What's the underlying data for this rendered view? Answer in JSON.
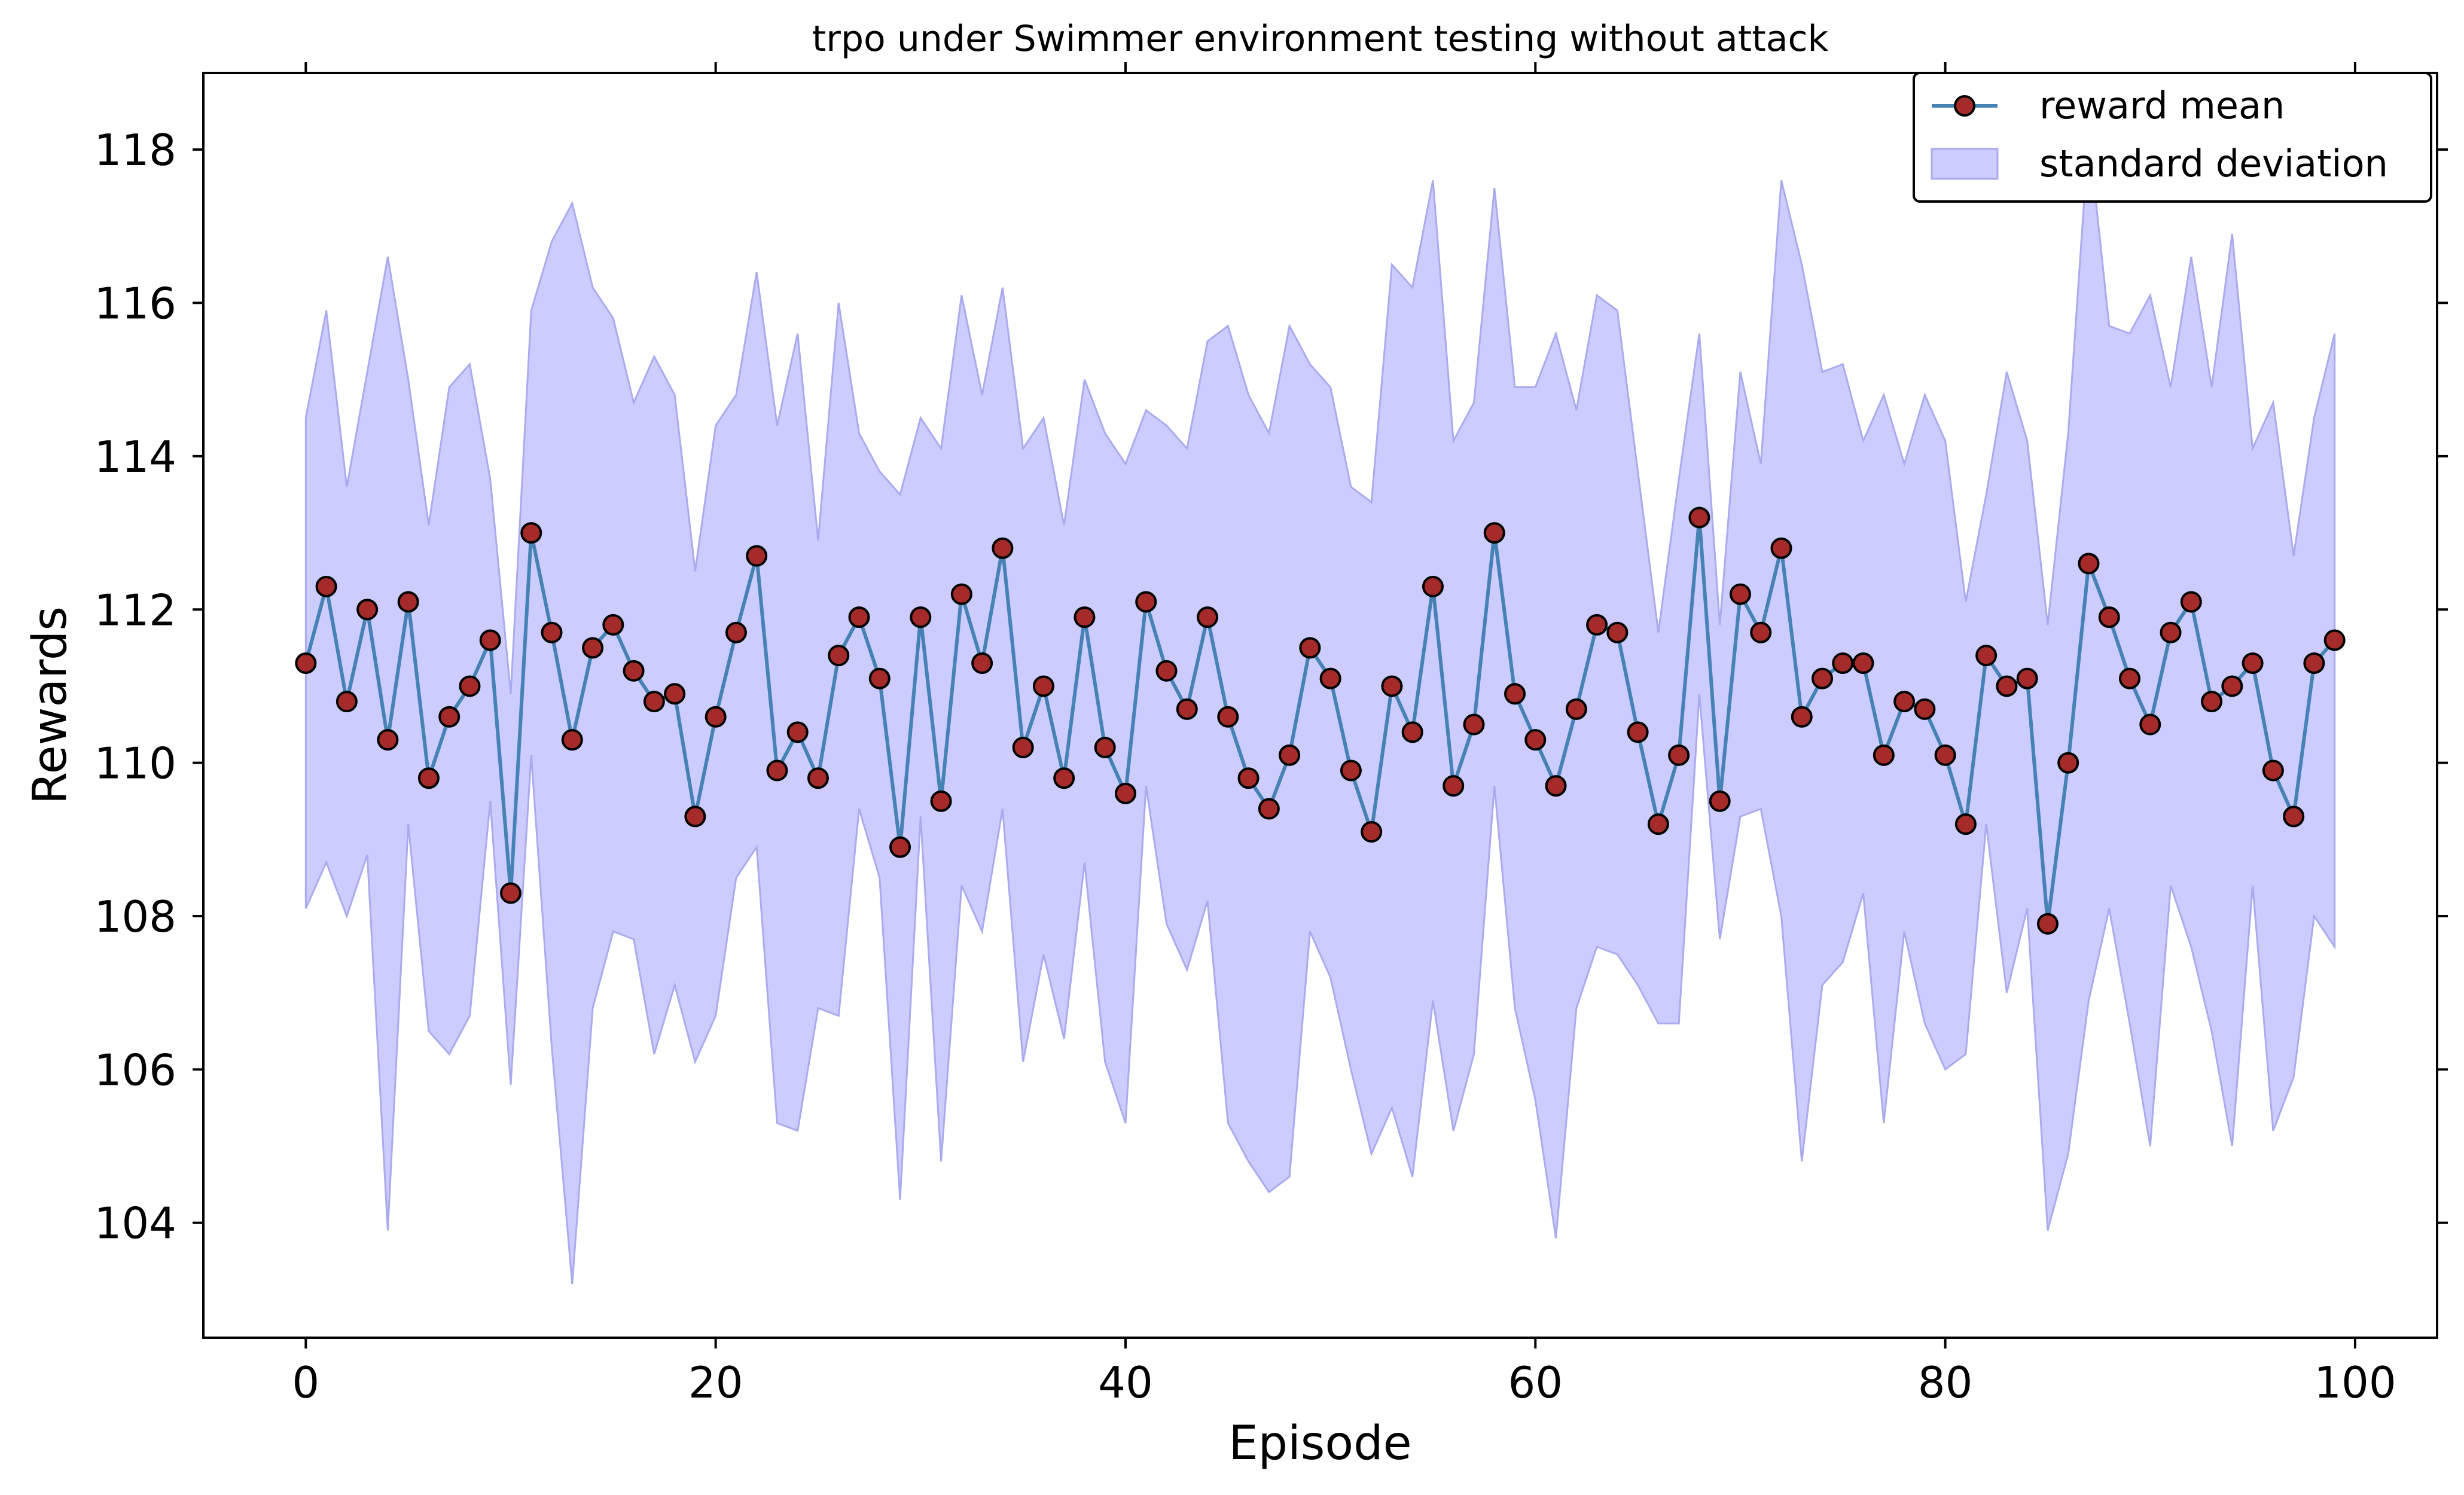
{
  "chart_data": {
    "type": "line",
    "title": "trpo under Swimmer environment testing without attack",
    "xlabel": "Episode",
    "ylabel": "Rewards",
    "xlim": [
      -5,
      104
    ],
    "ylim": [
      102.5,
      119
    ],
    "xticks": [
      0,
      20,
      40,
      60,
      80,
      100
    ],
    "yticks": [
      104,
      106,
      108,
      110,
      112,
      114,
      116,
      118
    ],
    "legend_position": "top-right",
    "colors": {
      "line": "#4682b4",
      "marker_fill": "#a52a2a",
      "marker_edge": "#000000",
      "band_fill": "#ccccff",
      "band_edge": "#aaaaee"
    },
    "x": [
      0,
      1,
      2,
      3,
      4,
      5,
      6,
      7,
      8,
      9,
      10,
      11,
      12,
      13,
      14,
      15,
      16,
      17,
      18,
      19,
      20,
      21,
      22,
      23,
      24,
      25,
      26,
      27,
      28,
      29,
      30,
      31,
      32,
      33,
      34,
      35,
      36,
      37,
      38,
      39,
      40,
      41,
      42,
      43,
      44,
      45,
      46,
      47,
      48,
      49,
      50,
      51,
      52,
      53,
      54,
      55,
      56,
      57,
      58,
      59,
      60,
      61,
      62,
      63,
      64,
      65,
      66,
      67,
      68,
      69,
      70,
      71,
      72,
      73,
      74,
      75,
      76,
      77,
      78,
      79,
      80,
      81,
      82,
      83,
      84,
      85,
      86,
      87,
      88,
      89,
      90,
      91,
      92,
      93,
      94,
      95,
      96,
      97,
      98,
      99
    ],
    "series": [
      {
        "name": "reward mean",
        "values": [
          111.3,
          112.3,
          110.8,
          112.0,
          110.3,
          112.1,
          109.8,
          110.6,
          111.0,
          111.6,
          108.3,
          113.0,
          111.7,
          110.3,
          111.5,
          111.8,
          111.2,
          110.8,
          110.9,
          109.3,
          110.6,
          111.7,
          112.7,
          109.9,
          110.4,
          109.8,
          111.4,
          111.9,
          111.1,
          108.9,
          111.9,
          109.5,
          112.2,
          111.3,
          112.8,
          110.2,
          111.0,
          109.8,
          111.9,
          110.2,
          109.6,
          112.1,
          111.2,
          110.7,
          111.9,
          110.6,
          109.8,
          109.4,
          110.1,
          111.5,
          111.1,
          109.9,
          109.1,
          111.0,
          110.4,
          112.3,
          109.7,
          110.5,
          113.0,
          110.9,
          110.3,
          109.7,
          110.7,
          111.8,
          111.7,
          110.4,
          109.2,
          110.1,
          113.2,
          109.5,
          112.2,
          111.7,
          112.8,
          110.6,
          111.1,
          111.3,
          111.3,
          110.1,
          110.8,
          110.7,
          110.1,
          109.2,
          111.4,
          111.0,
          111.1,
          107.9,
          110.0,
          112.6,
          111.9,
          111.1,
          110.5,
          111.7,
          112.1,
          110.8,
          111.0,
          111.3,
          109.9,
          109.3,
          111.3,
          111.6
        ]
      },
      {
        "name": "standard deviation",
        "upper": [
          114.5,
          115.9,
          113.6,
          115.1,
          116.6,
          115.0,
          113.1,
          114.9,
          115.2,
          113.7,
          110.9,
          115.9,
          116.8,
          117.3,
          116.2,
          115.8,
          114.7,
          115.3,
          114.8,
          112.5,
          114.4,
          114.8,
          116.4,
          114.4,
          115.6,
          112.9,
          116.0,
          114.3,
          113.8,
          113.5,
          114.5,
          114.1,
          116.1,
          114.8,
          116.2,
          114.1,
          114.5,
          113.1,
          115.0,
          114.3,
          113.9,
          114.6,
          114.4,
          114.1,
          115.5,
          115.7,
          114.8,
          114.3,
          115.7,
          115.2,
          114.9,
          113.6,
          113.4,
          116.5,
          116.2,
          117.6,
          114.2,
          114.7,
          117.5,
          114.9,
          114.9,
          115.6,
          114.6,
          116.1,
          115.9,
          113.8,
          111.7,
          113.7,
          115.6,
          111.8,
          115.1,
          113.9,
          117.6,
          116.5,
          115.1,
          115.2,
          114.2,
          114.8,
          113.9,
          114.8,
          114.2,
          112.1,
          113.5,
          115.1,
          114.2,
          111.8,
          114.3,
          118.2,
          115.7,
          115.6,
          116.1,
          114.9,
          116.6,
          114.9,
          116.9,
          114.1,
          114.7,
          112.7,
          114.5,
          115.6
        ],
        "lower": [
          108.1,
          108.7,
          108.0,
          108.8,
          103.9,
          109.2,
          106.5,
          106.2,
          106.7,
          109.5,
          105.8,
          110.1,
          106.3,
          103.2,
          106.8,
          107.8,
          107.7,
          106.2,
          107.1,
          106.1,
          106.7,
          108.5,
          108.9,
          105.3,
          105.2,
          106.8,
          106.7,
          109.4,
          108.5,
          104.3,
          109.3,
          104.8,
          108.4,
          107.8,
          109.4,
          106.1,
          107.5,
          106.4,
          108.7,
          106.1,
          105.3,
          109.7,
          107.9,
          107.3,
          108.2,
          105.3,
          104.8,
          104.4,
          104.6,
          107.8,
          107.2,
          106.0,
          104.9,
          105.5,
          104.6,
          106.9,
          105.2,
          106.2,
          109.7,
          106.8,
          105.6,
          103.8,
          106.8,
          107.6,
          107.5,
          107.1,
          106.6,
          106.6,
          110.9,
          107.7,
          109.3,
          109.4,
          108.0,
          104.8,
          107.1,
          107.4,
          108.3,
          105.3,
          107.8,
          106.6,
          106.0,
          106.2,
          109.2,
          107.0,
          108.1,
          103.9,
          104.9,
          106.9,
          108.1,
          106.6,
          105.0,
          108.4,
          107.6,
          106.5,
          105.0,
          108.4,
          105.2,
          105.9,
          108.0,
          107.6
        ]
      }
    ]
  }
}
